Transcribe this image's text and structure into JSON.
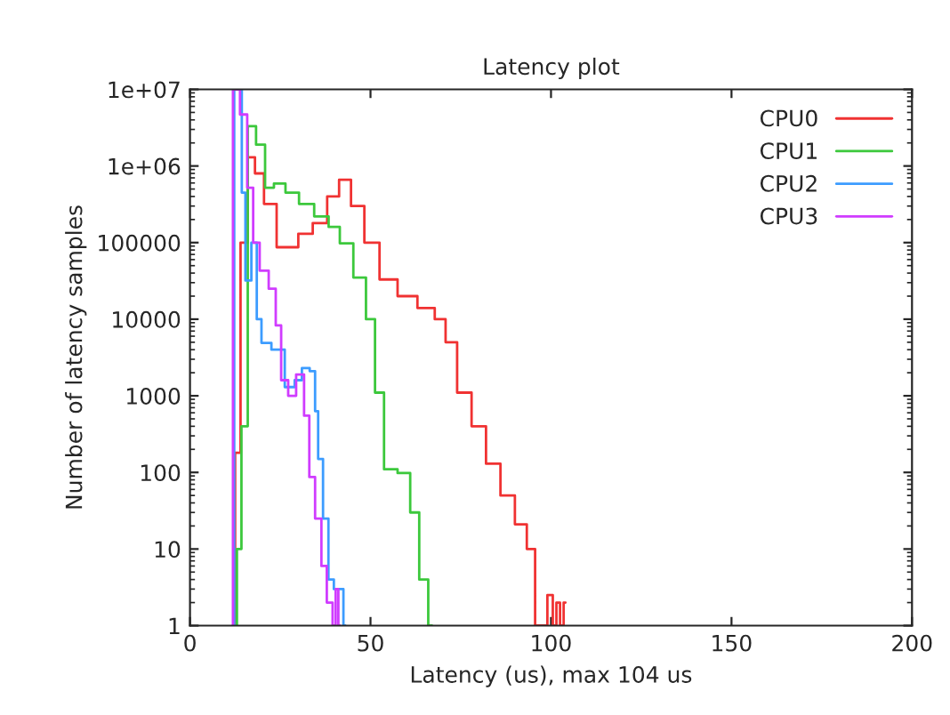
{
  "chart_data": {
    "type": "step",
    "title": "Latency plot",
    "xlabel": "Latency (us), max 104 us",
    "ylabel": "Number of latency samples",
    "log": "y",
    "grid": false,
    "legend": "top right",
    "xlim": [
      0,
      200
    ],
    "xticks": [
      0,
      50,
      100,
      150,
      200
    ],
    "ylim": [
      1,
      10000000
    ],
    "yticks": [
      {
        "value": 1,
        "label": "1"
      },
      {
        "value": 10,
        "label": "10"
      },
      {
        "value": 100,
        "label": "100"
      },
      {
        "value": 1000,
        "label": "1000"
      },
      {
        "value": 10000,
        "label": "10000"
      },
      {
        "value": 100000,
        "label": "100000"
      },
      {
        "value": 1000000,
        "label": "1e+06"
      },
      {
        "value": 10000000,
        "label": "1e+07"
      }
    ],
    "series": [
      {
        "name": "CPU0",
        "color": "#f03232",
        "x": [
          12,
          13,
          15,
          17,
          19,
          22,
          26,
          28,
          32,
          36,
          40,
          42.6,
          46.6,
          50,
          55,
          60,
          66,
          69.6,
          72,
          76,
          80,
          84,
          88,
          92,
          94.6,
          96.6,
          98,
          100,
          101,
          102,
          103,
          104
        ],
        "values": [
          1,
          180,
          100000,
          1300000,
          800000,
          320000,
          87000,
          87000,
          130000,
          180000,
          400000,
          660000,
          300000,
          100000,
          33000,
          20000,
          14000,
          10000,
          5000,
          1100,
          400,
          130,
          50,
          21,
          10,
          1,
          1,
          2.5,
          1,
          2,
          1,
          2
        ]
      },
      {
        "name": "CPU1",
        "color": "#3cc83c",
        "x": [
          12.5,
          13.5,
          15,
          17,
          19.6,
          22,
          24.5,
          28.4,
          32,
          36.8,
          40,
          43,
          47.5,
          50,
          52.5,
          55,
          60,
          62,
          65,
          67
        ],
        "values": [
          1,
          10,
          400,
          3300000,
          1900000,
          520000,
          590000,
          450000,
          320000,
          220000,
          160000,
          98000,
          35000,
          10000,
          1100,
          110,
          98,
          30,
          4,
          1
        ]
      },
      {
        "name": "CPU2",
        "color": "#3c9cff",
        "x": [
          12,
          12.5,
          14,
          14.7,
          16,
          18,
          19,
          20.6,
          24.5,
          28,
          30,
          32,
          34.3,
          35,
          36,
          37.7,
          39,
          40.7,
          42,
          43
        ],
        "values": [
          1,
          10000000,
          10000000,
          450000,
          32000,
          100000,
          10000,
          4900,
          4000,
          1300,
          1600,
          2300,
          2100,
          630,
          150,
          25,
          4,
          3,
          3,
          1
        ]
      },
      {
        "name": "CPU3",
        "color": "#d03cff",
        "x": [
          11.8,
          12,
          13,
          14.7,
          17,
          18,
          20.6,
          23,
          24.5,
          26,
          28.4,
          30.4,
          32.8,
          33.3,
          36,
          36.8,
          39,
          40,
          40.7,
          41.5
        ],
        "values": [
          1,
          10000000,
          10000000,
          4700000,
          520000,
          100000,
          43000,
          25000,
          8300,
          1600,
          1000,
          1900,
          550,
          87,
          25,
          6,
          2,
          1,
          3,
          1
        ]
      }
    ]
  }
}
